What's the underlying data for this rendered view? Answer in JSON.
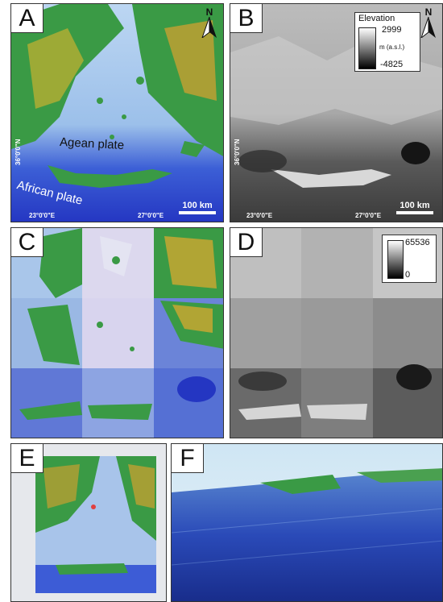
{
  "panels": {
    "a": {
      "letter": "A",
      "north": "N",
      "label_agean": "Agean plate",
      "label_african": "African plate",
      "lat": "36°0'0\"N",
      "lon1": "23°0'0\"E",
      "lon2": "27°0'0\"E",
      "scale": "100 km"
    },
    "b": {
      "letter": "B",
      "north": "N",
      "lat": "36°0'0\"N",
      "lon1": "23°0'0\"E",
      "lon2": "27°0'0\"E",
      "scale": "100 km",
      "legend": {
        "title": "Elevation",
        "max": "2999",
        "unit": "m (a.s.l.)",
        "min": "-4825"
      }
    },
    "c": {
      "letter": "C"
    },
    "d": {
      "letter": "D",
      "legend": {
        "max": "65536",
        "min": "0"
      }
    },
    "e": {
      "letter": "E"
    },
    "f": {
      "letter": "F"
    }
  },
  "colors": {
    "sea_deep": "#2a3fc8",
    "sea_shallow": "#b8d4f0",
    "land_low": "#2e8b3a",
    "land_high": "#c89a2a",
    "frame": "#333333"
  }
}
